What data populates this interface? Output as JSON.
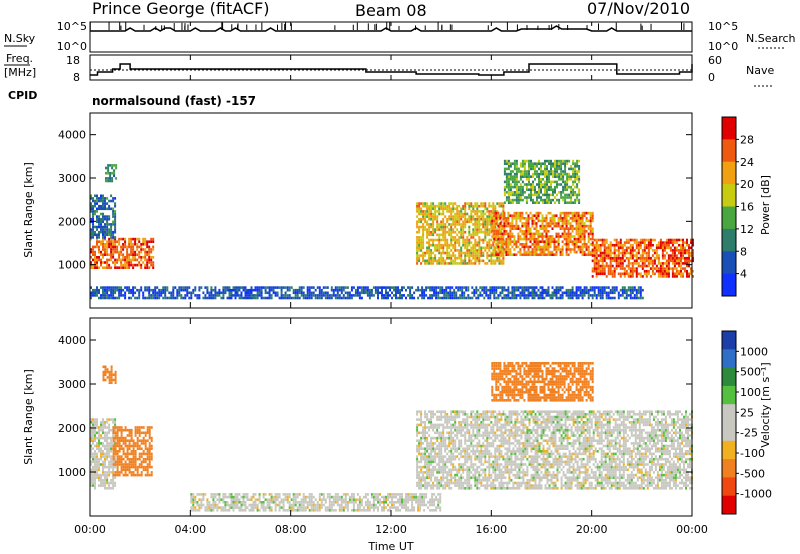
{
  "header": {
    "site": "Prince George (fitACF)",
    "beam": "Beam 08",
    "date": "07/Nov/2010"
  },
  "top_panels": {
    "nsky_label": "N.Sky",
    "nsky_ticks": [
      "10^5",
      "10^0"
    ],
    "nsearch_label": "N.Search",
    "nsearch_ticks": [
      "10^5",
      "10^0"
    ],
    "freq_label": "Freq.",
    "freq_unit": "[MHz]",
    "freq_ticks": [
      "18",
      "8"
    ],
    "nave_label": "Nave",
    "nave_ticks": [
      "60",
      "0"
    ],
    "cpid_label": "CPID",
    "cpid_text": "normalsound (fast) -157"
  },
  "x_axis": {
    "label": "Time UT",
    "ticks": [
      "00:00",
      "04:00",
      "08:00",
      "12:00",
      "16:00",
      "20:00",
      "00:00"
    ]
  },
  "power_panel": {
    "ylabel": "Slant Range [km]",
    "yticks": [
      "1000",
      "2000",
      "3000",
      "4000"
    ],
    "cbar_label": "Power [dB]",
    "cbar_ticks": [
      "4",
      "8",
      "12",
      "16",
      "20",
      "24",
      "28"
    ],
    "cbar_colors": [
      "#1030ff",
      "#1a4fb8",
      "#2e7d6a",
      "#4aa640",
      "#c8cc10",
      "#f0a010",
      "#f05a10",
      "#e00000"
    ]
  },
  "velocity_panel": {
    "ylabel": "Slant Range [km]",
    "yticks": [
      "1000",
      "2000",
      "3000",
      "4000"
    ],
    "cbar_label": "Velocity [m s⁻¹]",
    "cbar_ticks": [
      "1000",
      "500",
      "100",
      "25",
      "-25",
      "-100",
      "-500",
      "-1000"
    ],
    "cbar_colors": [
      "#1c3ea8",
      "#2f6fc8",
      "#2c8a3a",
      "#55c040",
      "#c8c8c0",
      "#c8c8c0",
      "#f0b020",
      "#f08020",
      "#f04810",
      "#e00000"
    ]
  },
  "chart_data": [
    {
      "type": "heatmap",
      "title": "Power",
      "xlabel": "Time UT",
      "ylabel": "Slant Range [km]",
      "xlim": [
        "00:00",
        "24:00"
      ],
      "ylim": [
        0,
        4500
      ],
      "color_scale": {
        "label": "Power [dB]",
        "min": 0,
        "max": 32
      },
      "regions": [
        {
          "t0": 0.0,
          "t1": 2.5,
          "r0": 900,
          "r1": 1600,
          "value": 26
        },
        {
          "t0": 0.0,
          "t1": 1.0,
          "r0": 1600,
          "r1": 2600,
          "value": 8
        },
        {
          "t0": 0.6,
          "t1": 1.0,
          "r0": 2900,
          "r1": 3300,
          "value": 10
        },
        {
          "t0": 0.0,
          "t1": 22.0,
          "r0": 200,
          "r1": 500,
          "value": 6
        },
        {
          "t0": 13.0,
          "t1": 16.5,
          "r0": 1000,
          "r1": 2400,
          "value": 20
        },
        {
          "t0": 16.0,
          "t1": 20.0,
          "r0": 1200,
          "r1": 2200,
          "value": 24
        },
        {
          "t0": 16.5,
          "t1": 19.5,
          "r0": 2400,
          "r1": 3400,
          "value": 14
        },
        {
          "t0": 20.0,
          "t1": 24.0,
          "r0": 700,
          "r1": 1600,
          "value": 26
        }
      ]
    },
    {
      "type": "heatmap",
      "title": "Velocity",
      "xlabel": "Time UT",
      "ylabel": "Slant Range [km]",
      "xlim": [
        "00:00",
        "24:00"
      ],
      "ylim": [
        0,
        4500
      ],
      "color_scale": {
        "label": "Velocity [m s⁻¹]",
        "min": -1000,
        "max": 1000
      },
      "regions": [
        {
          "t0": 0.0,
          "t1": 1.0,
          "r0": 600,
          "r1": 2200,
          "value": 0
        },
        {
          "t0": 0.9,
          "t1": 2.5,
          "r0": 900,
          "r1": 2000,
          "value": -150
        },
        {
          "t0": 0.5,
          "t1": 1.0,
          "r0": 3000,
          "r1": 3400,
          "value": -400
        },
        {
          "t0": 4.0,
          "t1": 14.0,
          "r0": 100,
          "r1": 500,
          "value": 0
        },
        {
          "t0": 13.0,
          "t1": 24.0,
          "r0": 600,
          "r1": 2400,
          "value": 0
        },
        {
          "t0": 16.0,
          "t1": 20.0,
          "r0": 2600,
          "r1": 3500,
          "value": -300
        }
      ]
    }
  ]
}
